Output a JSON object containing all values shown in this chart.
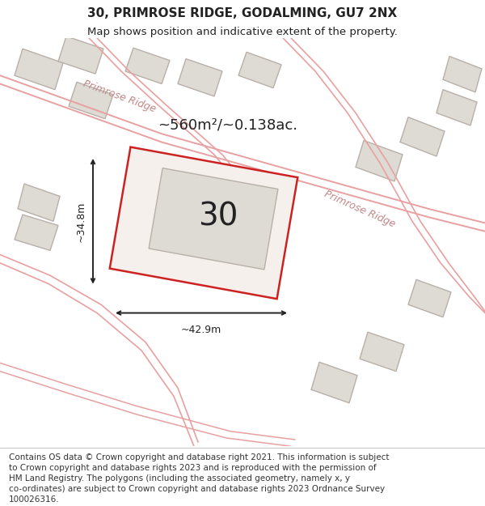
{
  "title_line1": "30, PRIMROSE RIDGE, GODALMING, GU7 2NX",
  "title_line2": "Map shows position and indicative extent of the property.",
  "area_text": "~560m²/~0.138ac.",
  "number_label": "30",
  "dim_width": "~42.9m",
  "dim_height": "~34.8m",
  "road_label1": "Primrose Ridge",
  "road_label2": "Primrose Ridge",
  "footer_lines": [
    "Contains OS data © Crown copyright and database right 2021. This information is subject",
    "to Crown copyright and database rights 2023 and is reproduced with the permission of",
    "HM Land Registry. The polygons (including the associated geometry, namely x, y",
    "co-ordinates) are subject to Crown copyright and database rights 2023 Ordnance Survey",
    "100026316."
  ],
  "map_bg": "#eeece8",
  "building_fill": "#dedad4",
  "building_edge": "#b8b0a8",
  "road_color": "#e8a0a0",
  "highlight_fill": "#f5f0eb",
  "highlight_edge": "#cc2222",
  "text_color": "#222222",
  "footer_bg": "#ffffff",
  "title_fontsize": 11,
  "subtitle_fontsize": 9.5,
  "area_fontsize": 13,
  "number_fontsize": 28,
  "footer_fontsize": 7.5,
  "road_label_fontsize": 9,
  "dim_fontsize": 9
}
